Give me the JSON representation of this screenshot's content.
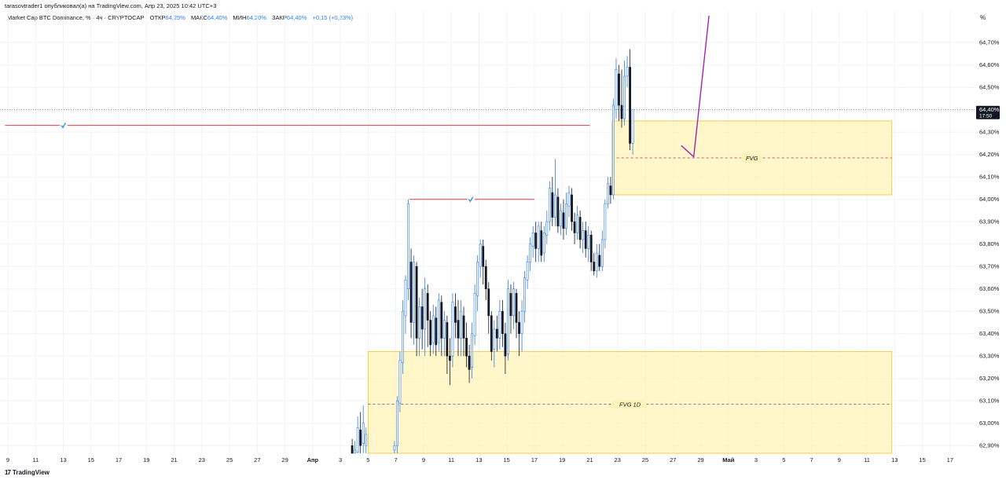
{
  "caption": "tarasovtrader1 опубликовал(а) на TradingView.com, Апр 23, 2025 10:42 UTC+3",
  "legend": {
    "symbol": "Market Cap BTC Dominance, % · 4ч · CRYPTOCAP",
    "open_label": "ОТКР",
    "open": "64,25%",
    "high_label": "МАКС",
    "high": "64,40%",
    "low_label": "МИН",
    "low": "64,20%",
    "close_label": "ЗАКР",
    "close": "64,40%",
    "change": "+0,15 (+0,23%)"
  },
  "unit": "%",
  "footer": {
    "logo_text": "TradingView",
    "logo_icon": "tradingview-logo-icon"
  },
  "colors": {
    "up": "#2f7cf6",
    "down": "#131722",
    "zone_fill": "#fff3b8",
    "zone_border": "#f2c230",
    "red_line": "#f23645",
    "purple": "#9c27b0",
    "check": "#2196f3"
  },
  "chart_data": {
    "type": "candlestick",
    "y_axis": {
      "min": 62.85,
      "max": 64.8,
      "ticks": [
        "64,70%",
        "64,60%",
        "64,50%",
        "64,40%",
        "64,30%",
        "64,20%",
        "64,10%",
        "64,00%",
        "63,90%",
        "63,80%",
        "63,70%",
        "63,60%",
        "63,50%",
        "63,40%",
        "63,30%",
        "63,20%",
        "63,10%",
        "63,00%",
        "62,90%"
      ],
      "tick_values": [
        64.7,
        64.6,
        64.5,
        64.4,
        64.3,
        64.2,
        64.1,
        64.0,
        63.9,
        63.8,
        63.7,
        63.6,
        63.5,
        63.4,
        63.3,
        63.2,
        63.1,
        63.0,
        62.9
      ]
    },
    "x_axis": {
      "labels": [
        "9",
        "11",
        "13",
        "15",
        "17",
        "19",
        "21",
        "23",
        "25",
        "27",
        "29",
        "Апр",
        "3",
        "5",
        "7",
        "9",
        "11",
        "13",
        "15",
        "17",
        "19",
        "21",
        "23",
        "25",
        "27",
        "29",
        "Май",
        "3",
        "5",
        "7",
        "9",
        "11",
        "13",
        "15",
        "17"
      ],
      "label_day_index": [
        0,
        2,
        4,
        6,
        8,
        10,
        12,
        14,
        16,
        18,
        20,
        22,
        24,
        26,
        28,
        30,
        32,
        34,
        36,
        38,
        40,
        42,
        44,
        46,
        48,
        50,
        52,
        54,
        56,
        58,
        60,
        62,
        64,
        66,
        68
      ]
    },
    "last_price": {
      "value": 64.4,
      "label": "64,40%",
      "timer": "17:50"
    },
    "zones": [
      {
        "name": "FVG",
        "label": "FVG",
        "day_start": 43.6,
        "day_end": 63.8,
        "top": 64.35,
        "bottom": 64.02,
        "mid": 64.185
      },
      {
        "name": "FVG 1D",
        "label": "FVG 1D",
        "day_start": 26.0,
        "day_end": 63.8,
        "top": 63.32,
        "bottom": 62.85,
        "mid": 63.085
      }
    ],
    "horizontal_lines": [
      {
        "value": 64.33,
        "day_start": -0.2,
        "day_end": 42.0,
        "check_day": 4.0
      },
      {
        "value": 64.0,
        "day_start": 29.0,
        "day_end": 38.0,
        "check_day": 33.4
      }
    ],
    "projection": [
      {
        "day": 48.6,
        "value": 64.24
      },
      {
        "day": 49.5,
        "value": 64.19
      },
      {
        "day": 50.6,
        "value": 64.82
      }
    ],
    "candles": [
      [
        24.85,
        62.9,
        62.85,
        62.93,
        62.85
      ],
      [
        25.05,
        62.86,
        62.88,
        62.92,
        62.85
      ],
      [
        25.25,
        62.87,
        62.98,
        63.03,
        62.85
      ],
      [
        25.45,
        62.97,
        62.9,
        63.05,
        62.85
      ],
      [
        25.65,
        62.91,
        63.0,
        63.08,
        62.85
      ],
      [
        25.85,
        62.9,
        62.95,
        62.98,
        62.86
      ],
      [
        27.9,
        62.88,
        62.9,
        62.92,
        62.85
      ],
      [
        28.1,
        62.9,
        63.1,
        63.12,
        62.86
      ],
      [
        28.3,
        63.09,
        63.28,
        63.32,
        63.05
      ],
      [
        28.5,
        63.27,
        63.5,
        63.55,
        63.22
      ],
      [
        28.7,
        63.48,
        63.64,
        63.66,
        63.4
      ],
      [
        28.9,
        63.6,
        63.98,
        64.0,
        63.55
      ],
      [
        29.1,
        63.72,
        63.45,
        63.78,
        63.38
      ],
      [
        29.3,
        63.45,
        63.72,
        63.75,
        63.35
      ],
      [
        29.5,
        63.7,
        63.38,
        63.72,
        63.3
      ],
      [
        29.7,
        63.38,
        63.52,
        63.56,
        63.3
      ],
      [
        29.9,
        63.52,
        63.42,
        63.6,
        63.33
      ],
      [
        30.1,
        63.42,
        63.6,
        63.65,
        63.3
      ],
      [
        30.3,
        63.58,
        63.46,
        63.62,
        63.34
      ],
      [
        30.5,
        63.46,
        63.35,
        63.5,
        63.3
      ],
      [
        30.7,
        63.36,
        63.48,
        63.53,
        63.31
      ],
      [
        30.9,
        63.47,
        63.35,
        63.52,
        63.3
      ],
      [
        31.1,
        63.36,
        63.55,
        63.58,
        63.32
      ],
      [
        31.3,
        63.54,
        63.38,
        63.57,
        63.3
      ],
      [
        31.5,
        63.38,
        63.46,
        63.5,
        63.3
      ],
      [
        31.7,
        63.45,
        63.3,
        63.48,
        63.22
      ],
      [
        31.9,
        63.3,
        63.28,
        63.38,
        63.17
      ],
      [
        32.1,
        63.3,
        63.54,
        63.58,
        63.25
      ],
      [
        32.3,
        63.52,
        63.45,
        63.58,
        63.38
      ],
      [
        32.5,
        63.46,
        63.38,
        63.55,
        63.3
      ],
      [
        32.7,
        63.38,
        63.5,
        63.55,
        63.3
      ],
      [
        32.9,
        63.48,
        63.38,
        63.52,
        63.3
      ],
      [
        33.1,
        63.38,
        63.3,
        63.45,
        63.25
      ],
      [
        33.3,
        63.3,
        63.24,
        63.35,
        63.18
      ],
      [
        33.5,
        63.25,
        63.4,
        63.45,
        63.2
      ],
      [
        33.7,
        63.39,
        63.58,
        63.62,
        63.35
      ],
      [
        33.9,
        63.57,
        63.72,
        63.75,
        63.5
      ],
      [
        34.1,
        63.7,
        63.8,
        63.82,
        63.65
      ],
      [
        34.3,
        63.79,
        63.7,
        63.82,
        63.62
      ],
      [
        34.5,
        63.7,
        63.6,
        63.73,
        63.55
      ],
      [
        34.7,
        63.6,
        63.48,
        63.63,
        63.4
      ],
      [
        34.9,
        63.48,
        63.32,
        63.5,
        63.28
      ],
      [
        35.1,
        63.33,
        63.42,
        63.46,
        63.25
      ],
      [
        35.3,
        63.42,
        63.38,
        63.48,
        63.32
      ],
      [
        35.5,
        63.38,
        63.5,
        63.55,
        63.33
      ],
      [
        35.7,
        63.5,
        63.4,
        63.55,
        63.34
      ],
      [
        35.9,
        63.4,
        63.3,
        63.45,
        63.22
      ],
      [
        36.1,
        63.31,
        63.6,
        63.64,
        63.28
      ],
      [
        36.3,
        63.58,
        63.48,
        63.62,
        63.4
      ],
      [
        36.5,
        63.48,
        63.6,
        63.63,
        63.42
      ],
      [
        36.7,
        63.58,
        63.45,
        63.6,
        63.38
      ],
      [
        36.9,
        63.45,
        63.4,
        63.5,
        63.3
      ],
      [
        37.1,
        63.4,
        63.5,
        63.55,
        63.32
      ],
      [
        37.3,
        63.5,
        63.65,
        63.68,
        63.45
      ],
      [
        37.5,
        63.64,
        63.72,
        63.75,
        63.6
      ],
      [
        37.7,
        63.72,
        63.8,
        63.83,
        63.68
      ],
      [
        37.9,
        63.79,
        63.85,
        63.88,
        63.74
      ],
      [
        38.1,
        63.85,
        63.78,
        63.9,
        63.72
      ],
      [
        38.3,
        63.78,
        63.88,
        63.9,
        63.72
      ],
      [
        38.5,
        63.86,
        63.75,
        63.9,
        63.72
      ],
      [
        38.7,
        63.76,
        63.85,
        63.88,
        63.72
      ],
      [
        38.9,
        63.84,
        63.9,
        63.95,
        63.8
      ],
      [
        39.1,
        63.9,
        64.05,
        64.08,
        63.86
      ],
      [
        39.3,
        64.03,
        63.92,
        64.1,
        63.88
      ],
      [
        39.5,
        63.92,
        64.02,
        64.18,
        63.88
      ],
      [
        39.7,
        64.01,
        63.88,
        64.05,
        63.85
      ],
      [
        39.9,
        63.88,
        63.95,
        63.98,
        63.84
      ],
      [
        40.1,
        63.94,
        63.87,
        64.0,
        63.82
      ],
      [
        40.3,
        63.87,
        63.98,
        64.03,
        63.84
      ],
      [
        40.5,
        63.97,
        64.03,
        64.06,
        63.92
      ],
      [
        40.7,
        64.02,
        63.9,
        64.05,
        63.86
      ],
      [
        40.9,
        63.9,
        63.85,
        63.94,
        63.8
      ],
      [
        41.1,
        63.85,
        63.93,
        63.97,
        63.82
      ],
      [
        41.3,
        63.92,
        63.82,
        63.95,
        63.78
      ],
      [
        41.5,
        63.82,
        63.86,
        63.9,
        63.76
      ],
      [
        41.7,
        63.86,
        63.78,
        63.9,
        63.74
      ],
      [
        41.9,
        63.78,
        63.84,
        63.88,
        63.72
      ],
      [
        42.1,
        63.84,
        63.72,
        63.86,
        63.68
      ],
      [
        42.3,
        63.72,
        63.68,
        63.76,
        63.66
      ],
      [
        42.5,
        63.68,
        63.76,
        63.8,
        63.65
      ],
      [
        42.7,
        63.75,
        63.7,
        63.8,
        63.68
      ],
      [
        42.9,
        63.7,
        63.82,
        63.86,
        63.68
      ],
      [
        43.1,
        63.82,
        63.98,
        64.0,
        63.78
      ],
      [
        43.3,
        63.98,
        64.07,
        64.1,
        63.96
      ],
      [
        43.5,
        64.06,
        64.02,
        64.1,
        63.98
      ],
      [
        43.7,
        64.02,
        64.42,
        64.45,
        64.0
      ],
      [
        43.9,
        64.4,
        64.58,
        64.63,
        64.36
      ],
      [
        44.1,
        64.56,
        64.42,
        64.6,
        64.35
      ],
      [
        44.3,
        64.42,
        64.36,
        64.58,
        64.32
      ],
      [
        44.5,
        64.36,
        64.55,
        64.62,
        64.33
      ],
      [
        44.7,
        64.55,
        64.59,
        64.64,
        64.5
      ],
      [
        44.9,
        64.59,
        64.25,
        64.67,
        64.22
      ],
      [
        45.1,
        64.25,
        64.4,
        64.4,
        64.2
      ]
    ]
  }
}
